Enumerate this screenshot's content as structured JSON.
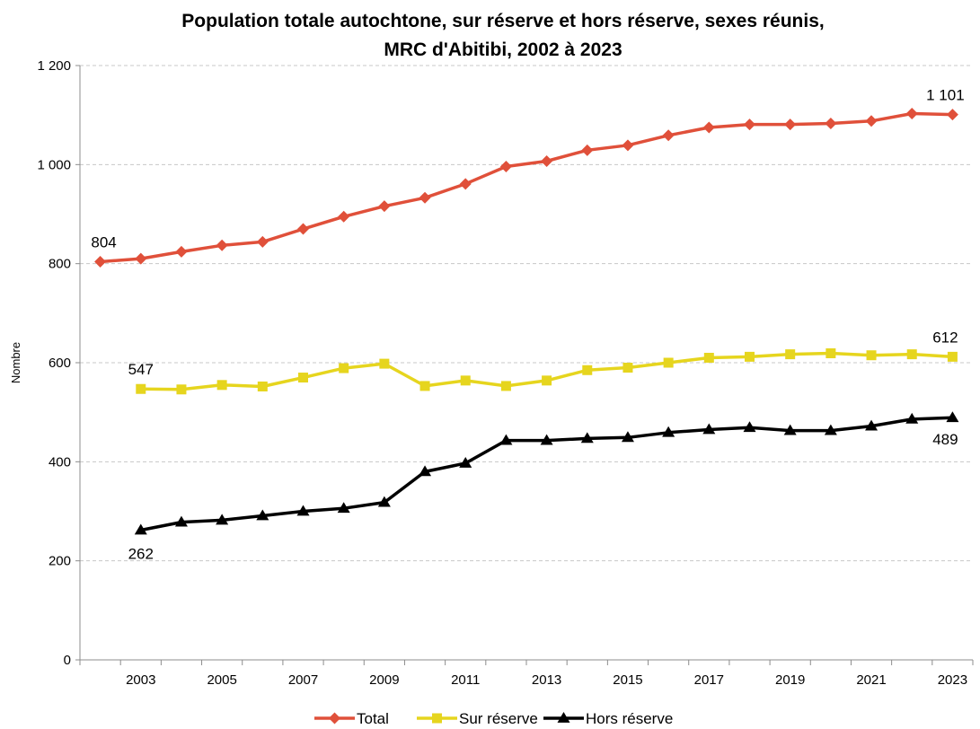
{
  "chart_data": {
    "type": "line",
    "title_line1": "Population totale autochtone, sur réserve et hors réserve, sexes réunis,",
    "title_line2": "MRC d'Abitibi, 2002 à 2023",
    "ylabel": "Nombre",
    "xlabel": "",
    "ylim": [
      0,
      1200
    ],
    "yticks": [
      0,
      200,
      400,
      600,
      800,
      1000,
      1200
    ],
    "ytick_labels": [
      "0",
      "200",
      "400",
      "600",
      "800",
      "1 000",
      "1 200"
    ],
    "x": [
      2002,
      2003,
      2004,
      2005,
      2006,
      2007,
      2008,
      2009,
      2010,
      2011,
      2012,
      2013,
      2014,
      2015,
      2016,
      2017,
      2018,
      2019,
      2020,
      2021,
      2022,
      2023
    ],
    "xtick_labels": [
      "2003",
      "2005",
      "2007",
      "2009",
      "2011",
      "2013",
      "2015",
      "2017",
      "2019",
      "2021",
      "2023"
    ],
    "grid": "horizontal dashed",
    "legend_position": "bottom",
    "series": [
      {
        "name": "Total",
        "color": "#E0503A",
        "marker": "diamond",
        "values": [
          804,
          810,
          824,
          837,
          844,
          870,
          895,
          916,
          933,
          961,
          996,
          1007,
          1029,
          1039,
          1059,
          1075,
          1081,
          1081,
          1083,
          1088,
          1103,
          1101
        ]
      },
      {
        "name": "Sur réserve",
        "color": "#E6D51E",
        "marker": "square",
        "values": [
          null,
          547,
          546,
          555,
          552,
          570,
          589,
          598,
          553,
          564,
          553,
          564,
          585,
          590,
          600,
          610,
          612,
          617,
          619,
          615,
          617,
          612
        ]
      },
      {
        "name": "Hors réserve",
        "color": "#000000",
        "marker": "triangle",
        "values": [
          null,
          262,
          278,
          282,
          291,
          300,
          306,
          318,
          380,
          397,
          443,
          443,
          447,
          449,
          459,
          465,
          469,
          463,
          463,
          472,
          486,
          489
        ]
      }
    ],
    "data_labels": [
      {
        "series": 0,
        "x": 2002,
        "text": "804"
      },
      {
        "series": 0,
        "x": 2023,
        "text": "1 101"
      },
      {
        "series": 1,
        "x": 2003,
        "text": "547"
      },
      {
        "series": 1,
        "x": 2023,
        "text": "612"
      },
      {
        "series": 2,
        "x": 2003,
        "text": "262"
      },
      {
        "series": 2,
        "x": 2023,
        "text": "489"
      }
    ]
  }
}
